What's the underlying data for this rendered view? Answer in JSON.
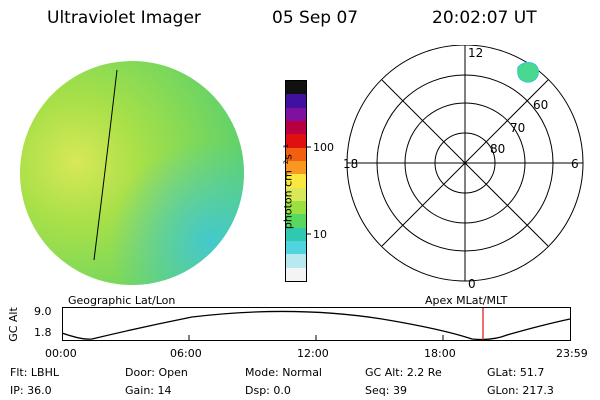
{
  "header": {
    "instrument": "Ultraviolet Imager",
    "date": "05 Sep 07",
    "time": "20:02:07 UT"
  },
  "colorbar": {
    "label": "photon cm⁻²s⁻¹",
    "ticks": [
      "100",
      "10"
    ],
    "colors": [
      "#f4f4f4",
      "#b8e8f0",
      "#4fd4e0",
      "#30c8b0",
      "#58d860",
      "#9ae040",
      "#d8e858",
      "#f8e840",
      "#f89820",
      "#f06010",
      "#e01010",
      "#b80040",
      "#8010a0",
      "#4010a0",
      "#101010"
    ]
  },
  "polar": {
    "mlt_labels": {
      "top": "12",
      "left": "18",
      "right": "6",
      "bottom": "0"
    },
    "lat_labels": [
      "60",
      "70",
      "80"
    ]
  },
  "timeline": {
    "left_title": "Geographic Lat/Lon",
    "right_title": "Apex MLat/MLT",
    "axis_label": "GC Alt",
    "y_ticks": [
      "9.0",
      "1.8"
    ],
    "x_ticks": [
      "00:00",
      "06:00",
      "12:00",
      "18:00",
      "23:59"
    ],
    "marker_color": "#e01010"
  },
  "status": {
    "row1": [
      {
        "label": "Flt:",
        "value": "LBHL"
      },
      {
        "label": "Door:",
        "value": "Open"
      },
      {
        "label": "Mode:",
        "value": "Normal"
      },
      {
        "label": "GC Alt:",
        "value": "2.2 Re"
      },
      {
        "label": "GLat:",
        "value": "51.7"
      }
    ],
    "row2": [
      {
        "label": "IP:",
        "value": "36.0"
      },
      {
        "label": "Gain:",
        "value": "14"
      },
      {
        "label": "Dsp:",
        "value": "0.0"
      },
      {
        "label": "Seq:",
        "value": "39"
      },
      {
        "label": "GLon:",
        "value": "217.3"
      }
    ]
  }
}
